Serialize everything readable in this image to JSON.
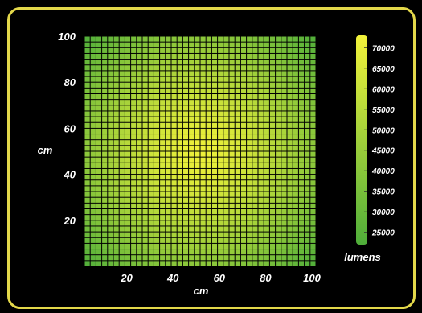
{
  "chart_data": {
    "type": "heatmap",
    "xlabel": "cm",
    "ylabel": "cm",
    "xlim": [
      0,
      100
    ],
    "ylim": [
      0,
      100
    ],
    "x_ticks": [
      "20",
      "40",
      "60",
      "80",
      "100"
    ],
    "y_ticks": [
      "20",
      "40",
      "60",
      "80",
      "100"
    ],
    "grid_cells": [
      40,
      40
    ],
    "peak": {
      "x": 50,
      "y": 50,
      "value": 72000
    },
    "edge_value": 22000,
    "colorbar": {
      "label": "lumens",
      "range": [
        22000,
        73000
      ],
      "ticks": [
        "25000",
        "30000",
        "35000",
        "40000",
        "45000",
        "50000",
        "55000",
        "60000",
        "65000",
        "70000"
      ]
    },
    "colors": {
      "low": "#4fae3a",
      "high": "#f2f23a",
      "frame": "#e3d84a",
      "background": "#000000"
    }
  }
}
